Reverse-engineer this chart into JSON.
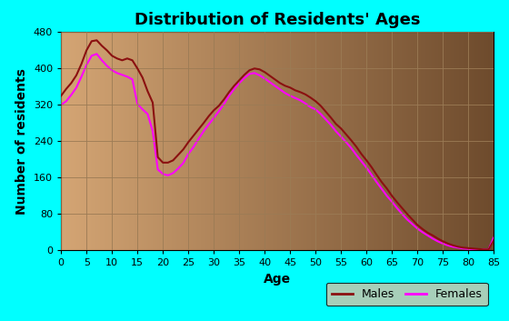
{
  "title": "Distribution of Residents' Ages",
  "xlabel": "Age",
  "ylabel": "Number of residents",
  "background_color": "#00FFFF",
  "plot_bg_left": "#D4A574",
  "plot_bg_right": "#8B6040",
  "grid_color": "#9B7B55",
  "ylim": [
    0,
    480
  ],
  "xlim": [
    0,
    85
  ],
  "yticks": [
    0,
    80,
    160,
    240,
    320,
    400,
    480
  ],
  "xticks": [
    0,
    5,
    10,
    15,
    20,
    25,
    30,
    35,
    40,
    45,
    50,
    55,
    60,
    65,
    70,
    75,
    80,
    85
  ],
  "ages": [
    0,
    1,
    2,
    3,
    4,
    5,
    6,
    7,
    8,
    9,
    10,
    11,
    12,
    13,
    14,
    15,
    16,
    17,
    18,
    19,
    20,
    21,
    22,
    23,
    24,
    25,
    26,
    27,
    28,
    29,
    30,
    31,
    32,
    33,
    34,
    35,
    36,
    37,
    38,
    39,
    40,
    41,
    42,
    43,
    44,
    45,
    46,
    47,
    48,
    49,
    50,
    51,
    52,
    53,
    54,
    55,
    56,
    57,
    58,
    59,
    60,
    61,
    62,
    63,
    64,
    65,
    66,
    67,
    68,
    69,
    70,
    71,
    72,
    73,
    74,
    75,
    76,
    77,
    78,
    79,
    80,
    81,
    82,
    83,
    84,
    85
  ],
  "males": [
    340,
    355,
    368,
    385,
    410,
    440,
    460,
    462,
    450,
    440,
    428,
    422,
    418,
    422,
    418,
    400,
    380,
    350,
    325,
    205,
    193,
    193,
    198,
    210,
    222,
    238,
    252,
    266,
    280,
    295,
    308,
    318,
    332,
    348,
    362,
    374,
    386,
    396,
    400,
    398,
    392,
    384,
    376,
    368,
    362,
    358,
    352,
    348,
    343,
    336,
    328,
    318,
    305,
    292,
    278,
    268,
    255,
    242,
    228,
    212,
    198,
    183,
    166,
    150,
    136,
    120,
    106,
    93,
    80,
    68,
    56,
    47,
    39,
    33,
    26,
    20,
    15,
    11,
    8,
    6,
    5,
    4,
    3,
    2,
    2,
    22
  ],
  "females": [
    320,
    328,
    342,
    358,
    382,
    408,
    428,
    432,
    418,
    406,
    396,
    390,
    386,
    382,
    376,
    322,
    310,
    300,
    262,
    178,
    168,
    165,
    170,
    180,
    192,
    212,
    227,
    245,
    262,
    277,
    291,
    306,
    322,
    340,
    355,
    368,
    379,
    388,
    390,
    385,
    378,
    370,
    362,
    354,
    346,
    340,
    335,
    330,
    323,
    315,
    310,
    300,
    288,
    276,
    262,
    250,
    238,
    225,
    210,
    196,
    182,
    166,
    150,
    135,
    120,
    107,
    93,
    80,
    68,
    58,
    48,
    40,
    33,
    26,
    20,
    15,
    11,
    8,
    6,
    4,
    3,
    2,
    2,
    2,
    2,
    28
  ],
  "male_color": "#8B1010",
  "female_color": "#FF00FF",
  "line_width": 1.5,
  "title_fontsize": 13,
  "axis_label_fontsize": 10,
  "tick_fontsize": 8,
  "legend_fontsize": 9
}
